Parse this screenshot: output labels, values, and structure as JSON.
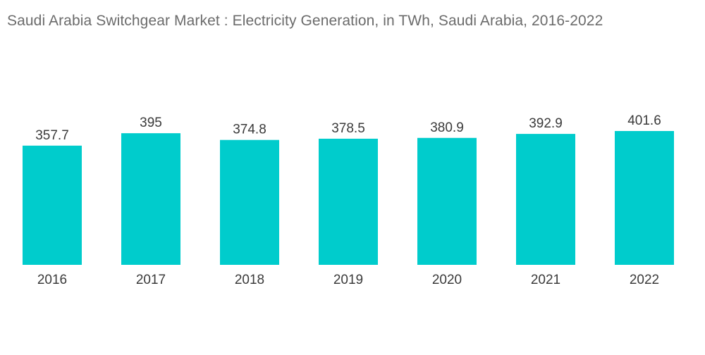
{
  "chart_data": {
    "type": "bar",
    "title": "Saudi Arabia Switchgear Market : Electricity Generation, in TWh, Saudi Arabia, 2016-2022",
    "categories": [
      "2016",
      "2017",
      "2018",
      "2019",
      "2020",
      "2021",
      "2022"
    ],
    "values": [
      357.7,
      395,
      374.8,
      378.5,
      380.9,
      392.9,
      401.6
    ],
    "data_labels": [
      "357.7",
      "395",
      "374.8",
      "378.5",
      "380.9",
      "392.9",
      "401.6"
    ],
    "xlabel": "",
    "ylabel": "",
    "ylim": [
      0,
      401.6
    ],
    "grid": false,
    "legend": "none",
    "colors": {
      "bar": "#00cccc",
      "title": "#6b6b6b",
      "text": "#3a3a3a"
    }
  }
}
